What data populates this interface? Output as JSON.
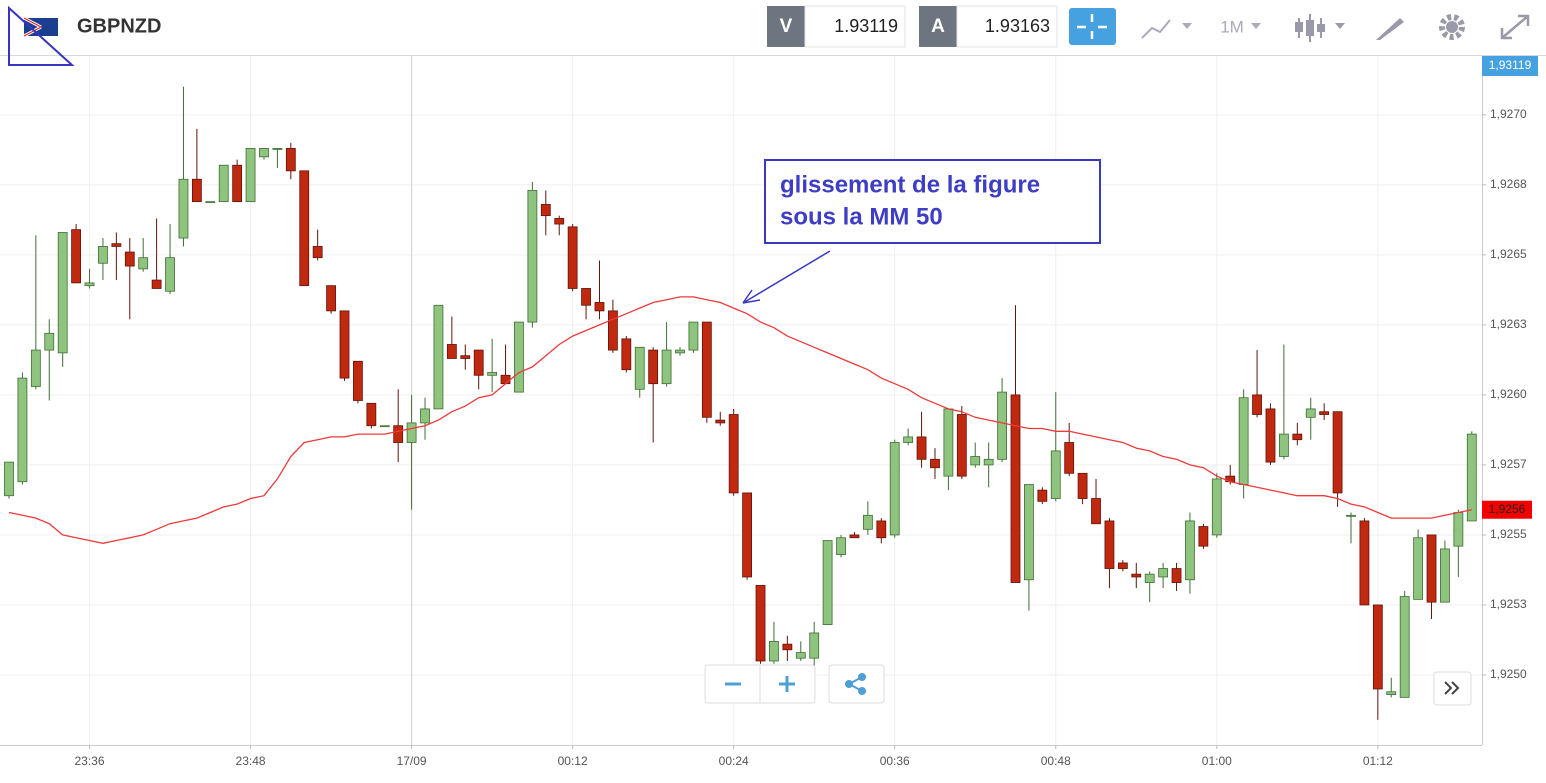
{
  "toolbar": {
    "bid_label": "V",
    "bid": 1.93119,
    "ask_label": "A",
    "ask": 1.93163,
    "period": "1M",
    "current_price_label": "1,93119"
  },
  "chart_data": {
    "type": "candlestick",
    "title": "GBPNZD",
    "x": [
      "23:30",
      "23:31",
      "23:32",
      "23:33",
      "23:34",
      "23:35",
      "23:36",
      "23:37",
      "23:38",
      "23:39",
      "23:40",
      "23:41",
      "23:42",
      "23:43",
      "23:44",
      "23:45",
      "23:46",
      "23:47",
      "23:48",
      "23:49",
      "23:50",
      "23:51",
      "23:52",
      "23:53",
      "23:54",
      "23:55",
      "23:56",
      "23:57",
      "23:58",
      "23:59",
      "00:00",
      "00:01",
      "00:02",
      "00:03",
      "00:04",
      "00:05",
      "00:06",
      "00:07",
      "00:08",
      "00:09",
      "00:10",
      "00:11",
      "00:12",
      "00:13",
      "00:14",
      "00:15",
      "00:16",
      "00:17",
      "00:18",
      "00:19",
      "00:20",
      "00:21",
      "00:22",
      "00:23",
      "00:24",
      "00:25",
      "00:26",
      "00:27",
      "00:28",
      "00:29",
      "00:30",
      "00:31",
      "00:32",
      "00:33",
      "00:34",
      "00:35",
      "00:36",
      "00:37",
      "00:38",
      "00:39",
      "00:40",
      "00:41",
      "00:42",
      "00:43",
      "00:44",
      "00:45",
      "00:46",
      "00:47",
      "00:48",
      "00:49",
      "00:50",
      "00:51",
      "00:52",
      "00:53",
      "00:54",
      "00:55",
      "00:56",
      "00:57",
      "00:58",
      "00:59",
      "01:00",
      "01:01",
      "01:02",
      "01:03",
      "01:04",
      "01:05",
      "01:06",
      "01:07",
      "01:08",
      "01:09",
      "01:10",
      "01:11",
      "01:12",
      "01:13",
      "01:14",
      "01:15",
      "01:16",
      "01:17",
      "01:18",
      "01:19"
    ],
    "open": [
      1.92564,
      1.92569,
      1.92603,
      1.92616,
      1.92615,
      1.92659,
      1.92639,
      1.92647,
      1.92654,
      1.92651,
      1.92645,
      1.92641,
      1.92637,
      1.92656,
      1.92677,
      1.92669,
      1.92669,
      1.92682,
      1.92669,
      1.92685,
      1.92688,
      1.92688,
      1.9268,
      1.92653,
      1.92639,
      1.9263,
      1.92612,
      1.92597,
      1.92589,
      1.92589,
      1.92583,
      1.9259,
      1.92595,
      1.92618,
      1.92614,
      1.92616,
      1.92607,
      1.92607,
      1.92601,
      1.92626,
      1.92668,
      1.92663,
      1.9266,
      1.92638,
      1.92633,
      1.9263,
      1.9262,
      1.92602,
      1.92616,
      1.92604,
      1.92615,
      1.92616,
      1.92626,
      1.92591,
      1.92593,
      1.92565,
      1.92532,
      1.92505,
      1.92511,
      1.92506,
      1.92506,
      1.92518,
      1.92543,
      1.9255,
      1.92552,
      1.92555,
      1.9255,
      1.92583,
      1.92585,
      1.92577,
      1.92571,
      1.92593,
      1.92575,
      1.92575,
      1.92577,
      1.926,
      1.92534,
      1.92566,
      1.92563,
      1.92583,
      1.92572,
      1.92563,
      1.92555,
      1.9254,
      1.92536,
      1.92533,
      1.92535,
      1.92538,
      1.92534,
      1.92553,
      1.9255,
      1.92571,
      1.92568,
      1.926,
      1.92595,
      1.92578,
      1.92586,
      1.92592,
      1.92594,
      1.92594,
      1.92557,
      1.92555,
      1.92525,
      1.92493,
      1.92492,
      1.92527,
      1.9255,
      1.92526,
      1.92546,
      1.92555
    ],
    "high": [
      1.92576,
      1.92608,
      1.92657,
      1.92627,
      1.92658,
      1.92661,
      1.92645,
      1.92656,
      1.92658,
      1.92656,
      1.92656,
      1.92663,
      1.92661,
      1.9271,
      1.92695,
      1.92669,
      1.92682,
      1.92684,
      1.92688,
      1.92688,
      1.92688,
      1.9269,
      1.9268,
      1.92659,
      1.92639,
      1.9263,
      1.92612,
      1.92597,
      1.92589,
      1.92602,
      1.926,
      1.92599,
      1.92632,
      1.92628,
      1.92618,
      1.92616,
      1.9262,
      1.92618,
      1.92626,
      1.92676,
      1.92673,
      1.92664,
      1.92661,
      1.92638,
      1.92648,
      1.92634,
      1.92621,
      1.92617,
      1.92617,
      1.92626,
      1.92617,
      1.92626,
      1.92626,
      1.92594,
      1.92595,
      1.92565,
      1.92532,
      1.92519,
      1.92514,
      1.92512,
      1.92519,
      1.92548,
      1.9255,
      1.92551,
      1.92562,
      1.92556,
      1.92584,
      1.92588,
      1.92594,
      1.92581,
      1.92595,
      1.92596,
      1.92583,
      1.92583,
      1.92606,
      1.92632,
      1.92568,
      1.92567,
      1.92601,
      1.9259,
      1.92572,
      1.9257,
      1.92556,
      1.92541,
      1.9254,
      1.92537,
      1.9254,
      1.9254,
      1.92558,
      1.92554,
      1.92572,
      1.92575,
      1.92602,
      1.92616,
      1.92597,
      1.92618,
      1.9259,
      1.92599,
      1.92597,
      1.92594,
      1.92558,
      1.92556,
      1.92525,
      1.92499,
      1.9253,
      1.92552,
      1.9255,
      1.92548,
      1.92559,
      1.92587
    ],
    "low": [
      1.92563,
      1.92568,
      1.92602,
      1.92598,
      1.9261,
      1.9264,
      1.92638,
      1.92641,
      1.92641,
      1.92627,
      1.92644,
      1.92638,
      1.92636,
      1.92653,
      1.92669,
      1.92669,
      1.92669,
      1.92669,
      1.92669,
      1.92684,
      1.92681,
      1.92677,
      1.92639,
      1.92648,
      1.92629,
      1.92605,
      1.92597,
      1.92588,
      1.92589,
      1.92576,
      1.92559,
      1.92584,
      1.92595,
      1.92613,
      1.92609,
      1.92602,
      1.92601,
      1.92604,
      1.92601,
      1.92624,
      1.92657,
      1.92657,
      1.92637,
      1.92627,
      1.92627,
      1.92615,
      1.92608,
      1.92599,
      1.92583,
      1.92603,
      1.92614,
      1.92615,
      1.9259,
      1.92589,
      1.92564,
      1.92534,
      1.92504,
      1.92504,
      1.92505,
      1.92505,
      1.92501,
      1.92518,
      1.92542,
      1.92549,
      1.9255,
      1.92547,
      1.92549,
      1.92582,
      1.92574,
      1.9257,
      1.92566,
      1.9257,
      1.92574,
      1.92567,
      1.92576,
      1.92533,
      1.92523,
      1.92561,
      1.92562,
      1.92571,
      1.92561,
      1.92554,
      1.92531,
      1.92537,
      1.92531,
      1.92526,
      1.92531,
      1.9253,
      1.92529,
      1.92545,
      1.92549,
      1.92568,
      1.92563,
      1.92592,
      1.92575,
      1.92577,
      1.92582,
      1.92584,
      1.92591,
      1.9256,
      1.92547,
      1.92525,
      1.92484,
      1.92492,
      1.92492,
      1.92527,
      1.9252,
      1.92526,
      1.92535,
      1.92555
    ],
    "close": [
      1.92576,
      1.92606,
      1.92616,
      1.92622,
      1.92658,
      1.9264,
      1.9264,
      1.92653,
      1.92653,
      1.92646,
      1.92649,
      1.92638,
      1.92649,
      1.92677,
      1.92669,
      1.92669,
      1.92682,
      1.92669,
      1.92688,
      1.92688,
      1.92688,
      1.9268,
      1.92639,
      1.92649,
      1.9263,
      1.92606,
      1.92598,
      1.92589,
      1.92589,
      1.92583,
      1.9259,
      1.92595,
      1.92632,
      1.92613,
      1.92613,
      1.92607,
      1.92608,
      1.92604,
      1.92626,
      1.92673,
      1.92664,
      1.92661,
      1.92638,
      1.92632,
      1.9263,
      1.92616,
      1.92609,
      1.92617,
      1.92604,
      1.92616,
      1.92616,
      1.92626,
      1.92592,
      1.9259,
      1.92565,
      1.92535,
      1.92505,
      1.92512,
      1.92509,
      1.92508,
      1.92515,
      1.92548,
      1.92549,
      1.92549,
      1.92557,
      1.92549,
      1.92583,
      1.92585,
      1.92577,
      1.92574,
      1.92595,
      1.92571,
      1.92578,
      1.92577,
      1.92601,
      1.92533,
      1.92568,
      1.92562,
      1.9258,
      1.92572,
      1.92563,
      1.92554,
      1.92538,
      1.92538,
      1.92535,
      1.92536,
      1.92538,
      1.92533,
      1.92555,
      1.92546,
      1.9257,
      1.92569,
      1.92599,
      1.92593,
      1.92576,
      1.92586,
      1.92584,
      1.92595,
      1.92593,
      1.92565,
      1.92557,
      1.92525,
      1.92495,
      1.92494,
      1.92528,
      1.92549,
      1.92526,
      1.92545,
      1.92558,
      1.92586
    ],
    "up_color": "#8fc47f",
    "up_border": "#3f6e35",
    "down_color": "#c0290f",
    "down_border": "#5e150a",
    "moving_average": {
      "color": "#f0393a",
      "values": [
        1.92558,
        1.92557,
        1.92556,
        1.92554,
        1.9255,
        1.92549,
        1.92548,
        1.92547,
        1.92548,
        1.92549,
        1.9255,
        1.92552,
        1.92554,
        1.92555,
        1.92556,
        1.92558,
        1.9256,
        1.92561,
        1.92563,
        1.92564,
        1.9257,
        1.92578,
        1.92583,
        1.92584,
        1.92585,
        1.92585,
        1.92586,
        1.92586,
        1.92586,
        1.92587,
        1.92588,
        1.92589,
        1.92591,
        1.92594,
        1.92596,
        1.92599,
        1.926,
        1.92604,
        1.92608,
        1.9261,
        1.92614,
        1.92618,
        1.92621,
        1.92623,
        1.92625,
        1.92627,
        1.92629,
        1.92631,
        1.92633,
        1.92634,
        1.92635,
        1.92635,
        1.92634,
        1.92633,
        1.92631,
        1.92629,
        1.92626,
        1.92624,
        1.92621,
        1.92619,
        1.92617,
        1.92615,
        1.92613,
        1.92611,
        1.92609,
        1.92606,
        1.92604,
        1.92602,
        1.92599,
        1.92597,
        1.92595,
        1.92594,
        1.92592,
        1.92591,
        1.9259,
        1.92589,
        1.92588,
        1.92588,
        1.92587,
        1.92587,
        1.92586,
        1.92585,
        1.92584,
        1.92583,
        1.92581,
        1.9258,
        1.92578,
        1.92577,
        1.92575,
        1.92574,
        1.92571,
        1.92569,
        1.92568,
        1.92567,
        1.92566,
        1.92565,
        1.92564,
        1.92564,
        1.92564,
        1.92563,
        1.92561,
        1.9256,
        1.92558,
        1.92556,
        1.92556,
        1.92556,
        1.92556,
        1.92557,
        1.92558,
        1.92559
      ],
      "tag": {
        "value": 1.92559,
        "label": "1,9256"
      }
    },
    "ylim": [
      1.92475,
      1.92721
    ],
    "yticks": [
      {
        "value": 1.925,
        "label": "1,9250"
      },
      {
        "value": 1.92525,
        "label": "1,9253"
      },
      {
        "value": 1.9255,
        "label": "1,9255"
      },
      {
        "value": 1.92575,
        "label": "1,9257"
      },
      {
        "value": 1.926,
        "label": "1,9260"
      },
      {
        "value": 1.92625,
        "label": "1,9263"
      },
      {
        "value": 1.9265,
        "label": "1,9265"
      },
      {
        "value": 1.92675,
        "label": "1,9268"
      },
      {
        "value": 1.927,
        "label": "1,9270"
      }
    ],
    "xticks": [
      "23:36",
      "23:48",
      {
        "value": "00:00",
        "label": "17/09"
      },
      "00:12",
      "00:24",
      "00:36",
      "00:48",
      "01:00",
      "01:12"
    ],
    "grid": true,
    "annotation": [
      "glissement de la figure",
      "sous la MM 50"
    ]
  }
}
